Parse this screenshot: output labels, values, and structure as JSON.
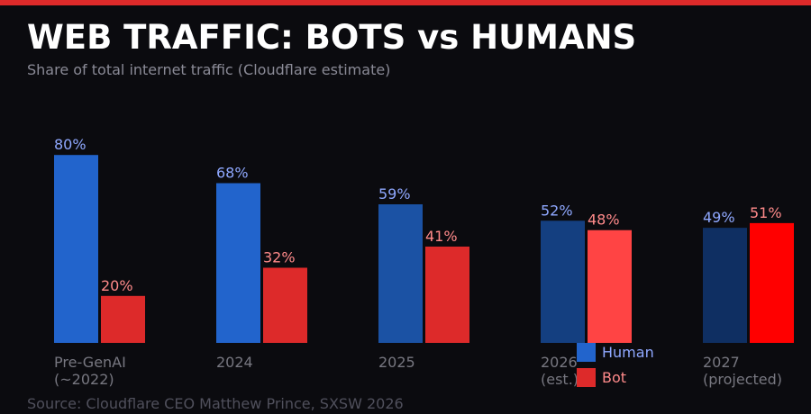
{
  "title": "WEB TRAFFIC: BOTS vs HUMANS",
  "subtitle": "Share of total internet traffic  (Cloudflare estimate)",
  "source": "Source: Cloudflare CEO Matthew Prince, SXSW 2026",
  "colors": {
    "accent_bar": "#dd2a2a",
    "human_label": "#8fa8ff",
    "bot_label": "#ff8a8a",
    "tick_label": "#777780",
    "background": "#0b0b0f"
  },
  "chart_data": {
    "type": "bar",
    "title": "WEB TRAFFIC: BOTS vs HUMANS",
    "subtitle": "Share of total internet traffic  (Cloudflare estimate)",
    "categories": [
      [
        "Pre-GenAI",
        "(~2022)"
      ],
      [
        "2024"
      ],
      [
        "2025"
      ],
      [
        "2026",
        "(est.)"
      ],
      [
        "2027",
        "(projected)"
      ]
    ],
    "series": [
      {
        "name": "Human",
        "values": [
          80,
          68,
          59,
          52,
          49
        ],
        "colors": [
          "#2264cc",
          "#2264cc",
          "#1b52a4",
          "#143f80",
          "#0f2f62"
        ]
      },
      {
        "name": "Bot",
        "values": [
          20,
          32,
          41,
          48,
          51
        ],
        "colors": [
          "#dd2a2a",
          "#dd2a2a",
          "#dd2a2a",
          "#ff4444",
          "#ff0000"
        ]
      }
    ],
    "value_suffix": "%",
    "ylim": [
      0,
      100
    ],
    "grid": false,
    "legend": {
      "placement": "bottom-center",
      "entries": [
        {
          "label": "Human",
          "color": "#2264cc"
        },
        {
          "label": "Bot",
          "color": "#dd2a2a"
        }
      ]
    }
  }
}
